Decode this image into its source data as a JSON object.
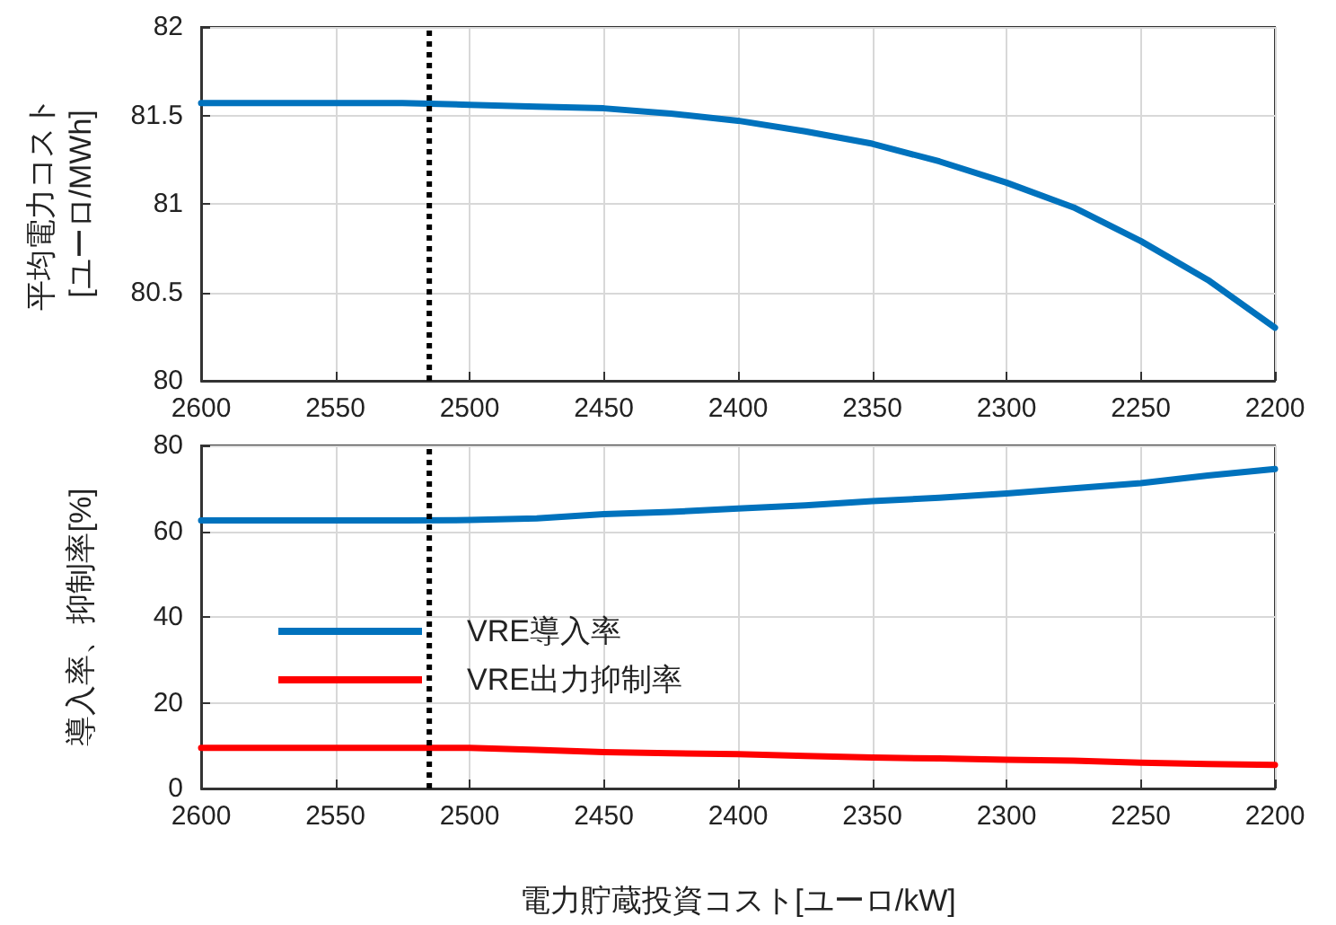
{
  "chart_data": [
    {
      "type": "line",
      "ylabel": "平均電力コスト\n[ユーロ/MWh]",
      "x": [
        2600,
        2575,
        2550,
        2525,
        2500,
        2475,
        2450,
        2425,
        2400,
        2375,
        2350,
        2325,
        2300,
        2275,
        2250,
        2225,
        2200
      ],
      "xlim": [
        2600,
        2200
      ],
      "xticks": [
        2600,
        2550,
        2500,
        2450,
        2400,
        2350,
        2300,
        2250,
        2200
      ],
      "ylim": [
        80,
        82
      ],
      "yticks": [
        80,
        80.5,
        81,
        81.5,
        82
      ],
      "grid": true,
      "legend": false,
      "series": [
        {
          "color": "#0072bd",
          "values": [
            81.57,
            81.57,
            81.57,
            81.57,
            81.56,
            81.55,
            81.54,
            81.51,
            81.47,
            81.41,
            81.34,
            81.24,
            81.12,
            80.98,
            80.79,
            80.57,
            80.3
          ]
        }
      ],
      "ref_lines": [
        {
          "axis": "x",
          "value": 2515,
          "color": "#000000",
          "line_style": "dotted"
        }
      ]
    },
    {
      "type": "line",
      "ylabel": "導入率、抑制率[%]",
      "xlabel": "電力貯蔵投資コスト[ユーロ/kW]",
      "x": [
        2600,
        2575,
        2550,
        2525,
        2500,
        2475,
        2450,
        2425,
        2400,
        2375,
        2350,
        2325,
        2300,
        2275,
        2250,
        2225,
        2200
      ],
      "xlim": [
        2600,
        2200
      ],
      "xticks": [
        2600,
        2550,
        2500,
        2450,
        2400,
        2350,
        2300,
        2250,
        2200
      ],
      "ylim": [
        0,
        80
      ],
      "yticks": [
        0,
        20,
        40,
        60,
        80
      ],
      "grid": true,
      "legend": "left",
      "series": [
        {
          "name": "VRE導入率",
          "color": "#0072bd",
          "values": [
            62.5,
            62.5,
            62.5,
            62.5,
            62.6,
            63,
            64,
            64.5,
            65.3,
            66,
            67,
            67.8,
            68.8,
            70,
            71.2,
            73,
            74.5
          ]
        },
        {
          "name": "VRE出力抑制率",
          "color": "#ff0000",
          "values": [
            9.5,
            9.5,
            9.5,
            9.5,
            9.5,
            9,
            8.5,
            8.2,
            8,
            7.6,
            7.2,
            7,
            6.7,
            6.5,
            6,
            5.7,
            5.5
          ]
        }
      ],
      "ref_lines": [
        {
          "axis": "x",
          "value": 2515,
          "color": "#000000",
          "line_style": "dotted"
        }
      ]
    }
  ]
}
